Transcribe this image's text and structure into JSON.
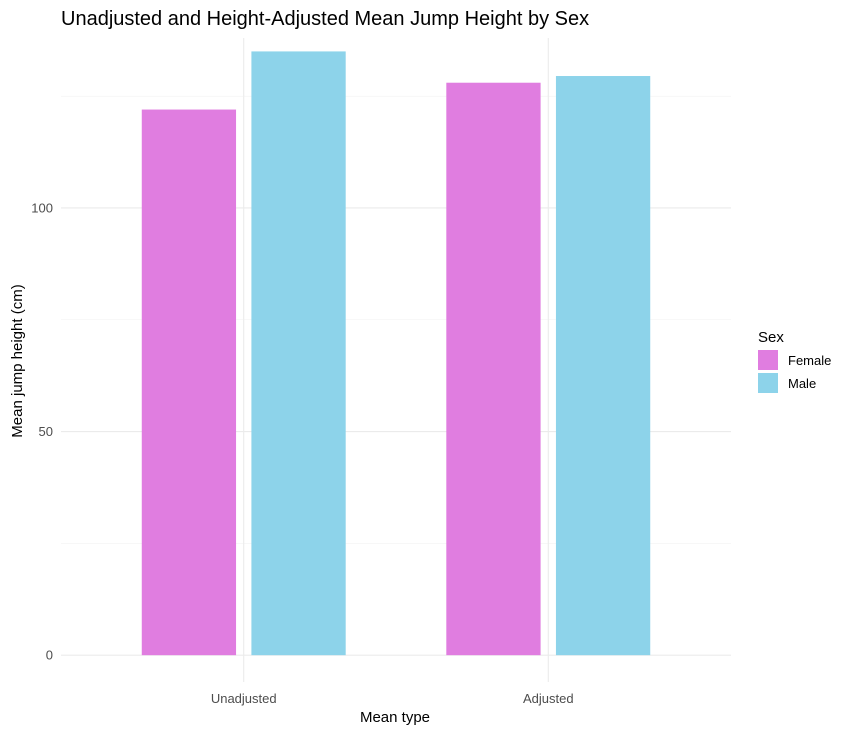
{
  "chart_data": {
    "type": "bar",
    "title": "Unadjusted and Height-Adjusted Mean Jump Height by Sex",
    "xlabel": "Mean type",
    "ylabel": "Mean jump height (cm)",
    "categories": [
      "Unadjusted",
      "Adjusted"
    ],
    "series": [
      {
        "name": "Female",
        "color": "#E07DE0",
        "values": [
          122,
          128
        ]
      },
      {
        "name": "Male",
        "color": "#8DD3EA",
        "values": [
          135,
          129.5
        ]
      }
    ],
    "ylim": [
      -6,
      138
    ],
    "yticks": [
      0,
      50,
      100
    ],
    "ytick_labels": [
      "0",
      "50",
      "100"
    ],
    "grid": true,
    "legend": {
      "title": "Sex",
      "position": "right"
    }
  }
}
